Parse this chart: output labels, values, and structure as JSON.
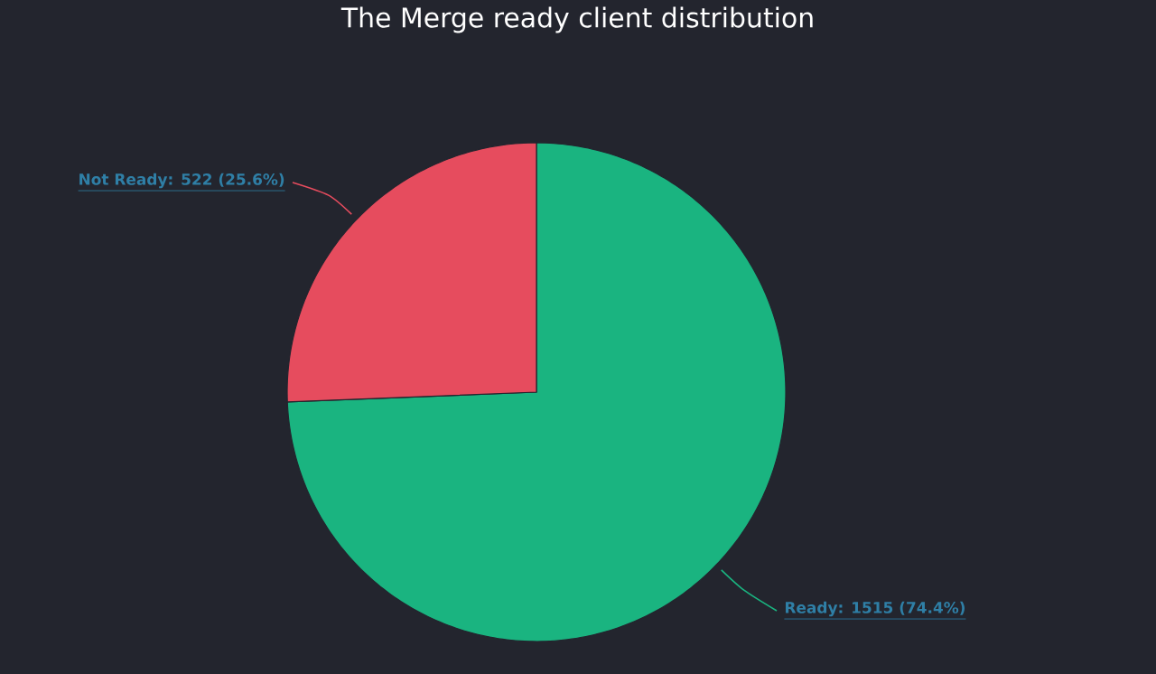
{
  "chart_data": {
    "type": "pie",
    "title": "The Merge ready client distribution",
    "categories": [
      "Ready",
      "Not Ready"
    ],
    "values": [
      1515,
      522
    ],
    "colors": [
      "#1ab480",
      "#e64c5e"
    ],
    "value_labels": [
      ": 1515 (74.4%)",
      ": 522 (25.6%)"
    ]
  }
}
